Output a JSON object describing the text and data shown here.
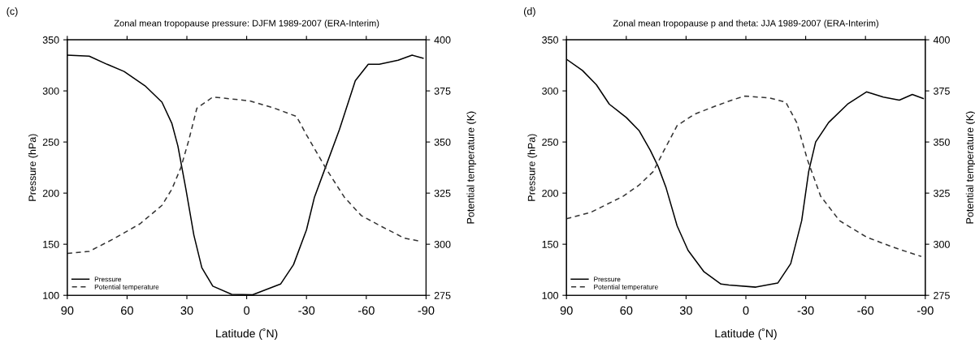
{
  "chart_data": [
    {
      "type": "line",
      "title": "Zonal mean tropopause pressure: DJFM 1989-2007 (ERA-Interim)",
      "xlabel": "Latitude (˚N)",
      "ylabel": "Pressure (hPa)",
      "y2label": "Potential temperature (K)",
      "annotations": [
        "(c)"
      ],
      "xlim": [
        90,
        -90
      ],
      "xticks": [
        90,
        60,
        30,
        0,
        -30,
        -60,
        -90
      ],
      "ylim": [
        100,
        350
      ],
      "yticks": [
        100,
        150,
        200,
        250,
        300,
        350
      ],
      "y2lim": [
        275,
        400
      ],
      "y2ticks": [
        275,
        300,
        325,
        350,
        375,
        400
      ],
      "legend": "bottom left",
      "grid": false,
      "series": [
        {
          "name": "Pressure",
          "color": "#000000",
          "line_style": "solid",
          "x": [
            90,
            79,
            70,
            61.5,
            51,
            42.5,
            37.5,
            34.5,
            30.5,
            26.5,
            22.5,
            17,
            7.5,
            -3,
            -17,
            -23.5,
            -30,
            -34,
            -39.5,
            -46.5,
            -54.5,
            -61,
            -66.5,
            -76,
            -83,
            -88.5
          ],
          "values": [
            335,
            334,
            326,
            319,
            305,
            289,
            268,
            246,
            204,
            159,
            127,
            109,
            101,
            100.5,
            111,
            130,
            164,
            196,
            225,
            262,
            310,
            326,
            326,
            330,
            335,
            332
          ]
        },
        {
          "name": "Potential temperature",
          "color": "#333333",
          "line_style": "dashed",
          "axis": "y2",
          "x": [
            90,
            79,
            67,
            53.5,
            42.5,
            37.5,
            33,
            29,
            25,
            17,
            2,
            -2,
            -14,
            -25,
            -30,
            -39.5,
            -49,
            -57.5,
            -68,
            -79,
            -87
          ],
          "values": [
            295.5,
            296.5,
            302.5,
            310,
            319,
            327,
            337.5,
            351,
            366.5,
            372,
            370.5,
            370,
            366.5,
            362.5,
            353.5,
            337.5,
            323,
            314,
            308.5,
            303,
            301.5
          ]
        }
      ]
    },
    {
      "type": "line",
      "title": "Zonal mean tropopause p and theta: JJA 1989-2007 (ERA-Interim)",
      "xlabel": "Latitude (˚N)",
      "ylabel": "Pressure (hPa)",
      "y2label": "Potential temperature (K)",
      "annotations": [
        "(d)"
      ],
      "xlim": [
        90,
        -90
      ],
      "xticks": [
        90,
        60,
        30,
        0,
        -30,
        -60,
        -90
      ],
      "ylim": [
        100,
        350
      ],
      "yticks": [
        100,
        150,
        200,
        250,
        300,
        350
      ],
      "y2lim": [
        275,
        400
      ],
      "y2ticks": [
        275,
        300,
        325,
        350,
        375,
        400
      ],
      "legend": "bottom left",
      "grid": false,
      "series": [
        {
          "name": "Pressure",
          "color": "#000000",
          "line_style": "solid",
          "x": [
            90,
            82,
            75,
            68.5,
            60,
            53.5,
            48,
            44,
            40,
            34.5,
            29,
            21,
            12.5,
            8.5,
            -5,
            -16,
            -22.5,
            -28,
            -31.5,
            -35,
            -41.5,
            -51,
            -60.5,
            -69,
            -77,
            -83.5,
            -89
          ],
          "values": [
            331,
            320,
            306,
            287,
            274,
            261,
            242,
            226,
            205,
            168,
            144,
            123,
            111,
            110,
            108,
            112,
            131,
            173,
            221,
            250,
            269,
            287,
            299,
            294,
            291,
            296.5,
            292.5
          ]
        },
        {
          "name": "Potential temperature",
          "color": "#333333",
          "line_style": "dashed",
          "axis": "y2",
          "x": [
            90,
            78,
            61.5,
            53.5,
            46.5,
            41,
            34.5,
            26,
            15.5,
            7,
            0.5,
            -12,
            -20,
            -25.5,
            -31,
            -37.5,
            -47,
            -60.5,
            -74,
            -88
          ],
          "values": [
            312.5,
            315.5,
            323.5,
            329,
            335.5,
            346,
            358,
            363.5,
            367.5,
            370.5,
            372.5,
            371.5,
            369.5,
            359.5,
            341,
            323.5,
            311.5,
            303.5,
            298.5,
            294
          ]
        }
      ]
    }
  ]
}
